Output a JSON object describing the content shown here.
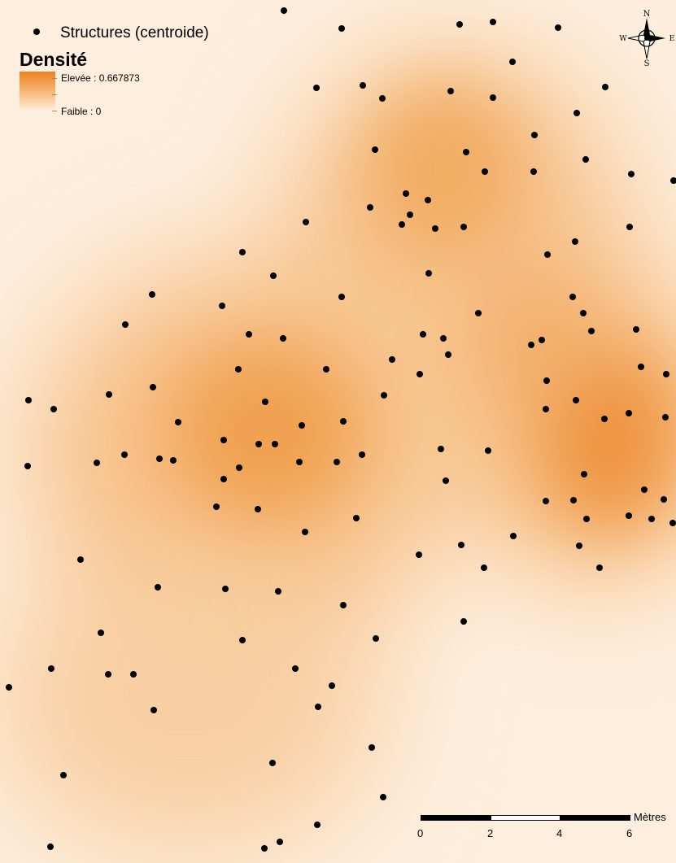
{
  "legend": {
    "layer_label": "Structures (centroide)",
    "title": "Densité",
    "high_label": "Elevée : 0.667873",
    "low_label": "Faible : 0"
  },
  "north_arrow": {
    "n": "N",
    "s": "S",
    "e": "E",
    "w": "W"
  },
  "scale_bar": {
    "unit": "Mètres",
    "ticks": [
      "0",
      "2",
      "4",
      "6"
    ]
  },
  "colors": {
    "high": "#ec7f1f",
    "low": "#fdeedd",
    "points": "#000000"
  }
}
